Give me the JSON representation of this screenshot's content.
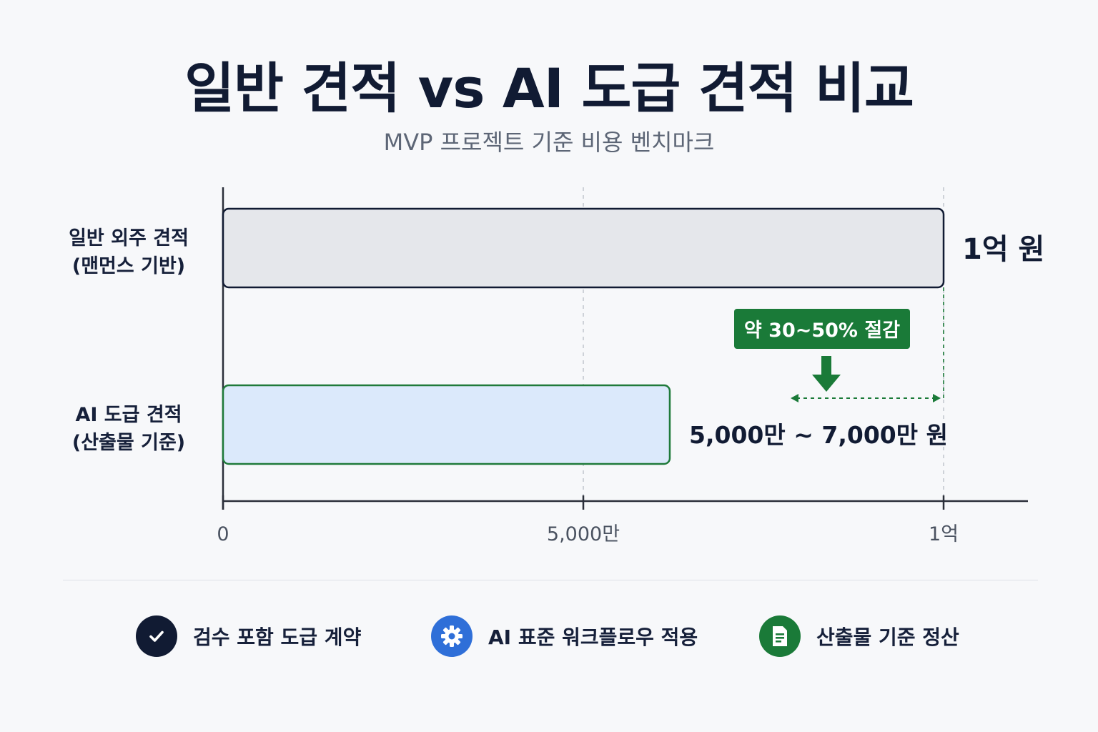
{
  "chart_data": {
    "type": "bar",
    "orientation": "horizontal",
    "title": "일반 견적 vs AI 도급 견적 비교",
    "subtitle": "MVP 프로젝트 기준 비용 벤치마크",
    "categories": [
      {
        "line1": "일반 외주 견적",
        "line2": "(맨먼스 기반)"
      },
      {
        "line1": "AI 도급 견적",
        "line2": "(산출물 기준)"
      }
    ],
    "values": [
      100000000,
      62000000
    ],
    "value_labels": [
      "1억 원",
      "5,000만 ~ 7,000만 원"
    ],
    "xlim": [
      0,
      100000000
    ],
    "x_ticks": [
      {
        "value": 0,
        "label": "0"
      },
      {
        "value": 50000000,
        "label": "5,000만"
      },
      {
        "value": 100000000,
        "label": "1억"
      }
    ],
    "grid": "vertical dashed",
    "annotation": {
      "text": "약 30~50% 절감",
      "range": [
        83000000,
        100000000
      ]
    },
    "colors": {
      "bar1_fill": "#e5e7eb",
      "bar1_stroke": "#111b33",
      "bar2_fill": "#dbe9fb",
      "bar2_stroke": "#1f7a3a",
      "accent_green": "#1a7a38",
      "axis": "#2b2f3a",
      "grid": "#b9bec7"
    }
  },
  "legend": [
    {
      "icon": "check-icon",
      "label": "검수 포함 도급 계약",
      "color": "#111b33"
    },
    {
      "icon": "gear-icon",
      "label": "AI 표준 워크플로우 적용",
      "color": "#2f6fd8"
    },
    {
      "icon": "document-icon",
      "label": "산출물 기준 정산",
      "color": "#1a7a38"
    }
  ]
}
